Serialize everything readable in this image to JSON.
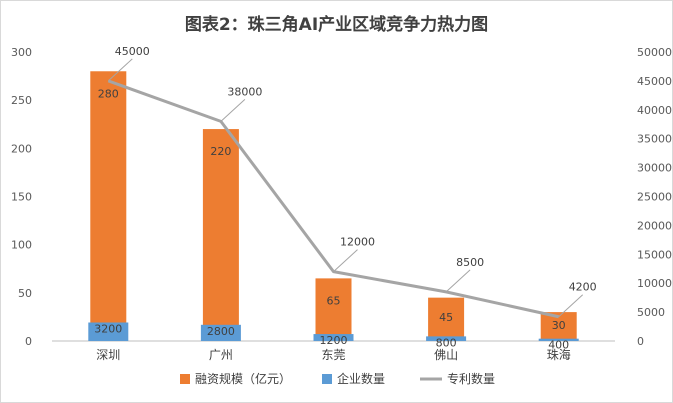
{
  "chart_data": {
    "type": "bar",
    "title": "图表2：珠三角AI产业区域竞争力热力图",
    "categories": [
      "深圳",
      "广州",
      "东莞",
      "佛山",
      "珠海"
    ],
    "series": [
      {
        "name": "融资规模（亿元）",
        "kind": "bar",
        "axis": "left",
        "color": "#ed7d31",
        "values": [
          280,
          220,
          65,
          45,
          30
        ]
      },
      {
        "name": "企业数量",
        "kind": "bar",
        "axis": "right",
        "color": "#5b9bd5",
        "values": [
          3200,
          2800,
          1200,
          800,
          400
        ]
      },
      {
        "name": "专利数量",
        "kind": "line",
        "axis": "right",
        "color": "#a5a5a5",
        "values": [
          45000,
          38000,
          12000,
          8500,
          4200
        ]
      }
    ],
    "y_left": {
      "min": 0,
      "max": 300,
      "ticks": [
        "0",
        "50",
        "100",
        "150",
        "200",
        "250",
        "300"
      ]
    },
    "y_right": {
      "min": 0,
      "max": 50000,
      "ticks": [
        "0",
        "5000",
        "10000",
        "15000",
        "20000",
        "25000",
        "30000",
        "35000",
        "40000",
        "45000",
        "50000"
      ]
    },
    "grid": false,
    "legend_position": "bottom"
  }
}
